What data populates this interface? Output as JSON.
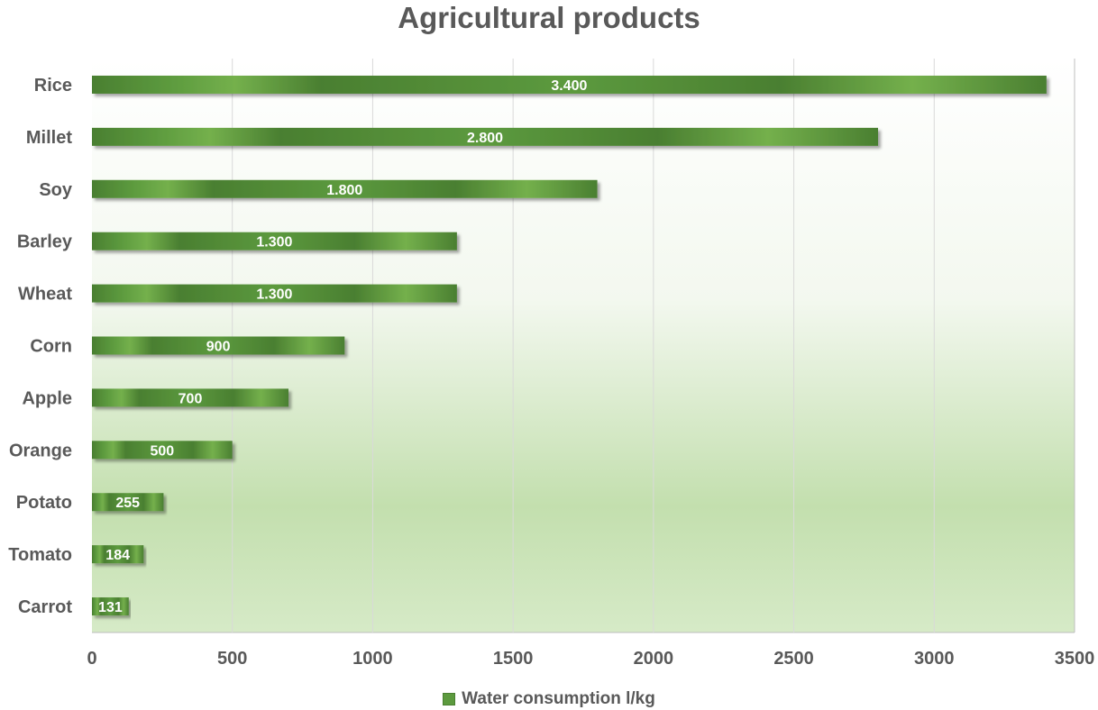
{
  "chart_data": {
    "type": "bar",
    "orientation": "horizontal",
    "title": "Agricultural products",
    "xlabel": "",
    "ylabel": "",
    "categories": [
      "Rice",
      "Millet",
      "Soy",
      "Barley",
      "Wheat",
      "Corn",
      "Apple",
      "Orange",
      "Potato",
      "Tomato",
      "Carrot"
    ],
    "series": [
      {
        "name": "Water consumption l/kg",
        "values": [
          3400,
          2800,
          1800,
          1300,
          1300,
          900,
          700,
          500,
          255,
          184,
          131
        ],
        "data_labels": [
          "3.400",
          "2.800",
          "1.800",
          "1.300",
          "1.300",
          "900",
          "700",
          "500",
          "255",
          "184",
          "131"
        ]
      }
    ],
    "xlim": [
      0,
      3500
    ],
    "x_ticks": [
      "0",
      "500",
      "1000",
      "1500",
      "2000",
      "2500",
      "3000",
      "3500"
    ],
    "grid": true,
    "legend_position": "bottom",
    "colors": {
      "bar_dark": "#4a7f31",
      "bar_mid": "#5c9a3e",
      "bar_light": "#74b04c",
      "plot_top": "#ffffff",
      "plot_bottom": "#c3dfae",
      "text": "#595959",
      "grid": "#d9d9d9"
    }
  }
}
